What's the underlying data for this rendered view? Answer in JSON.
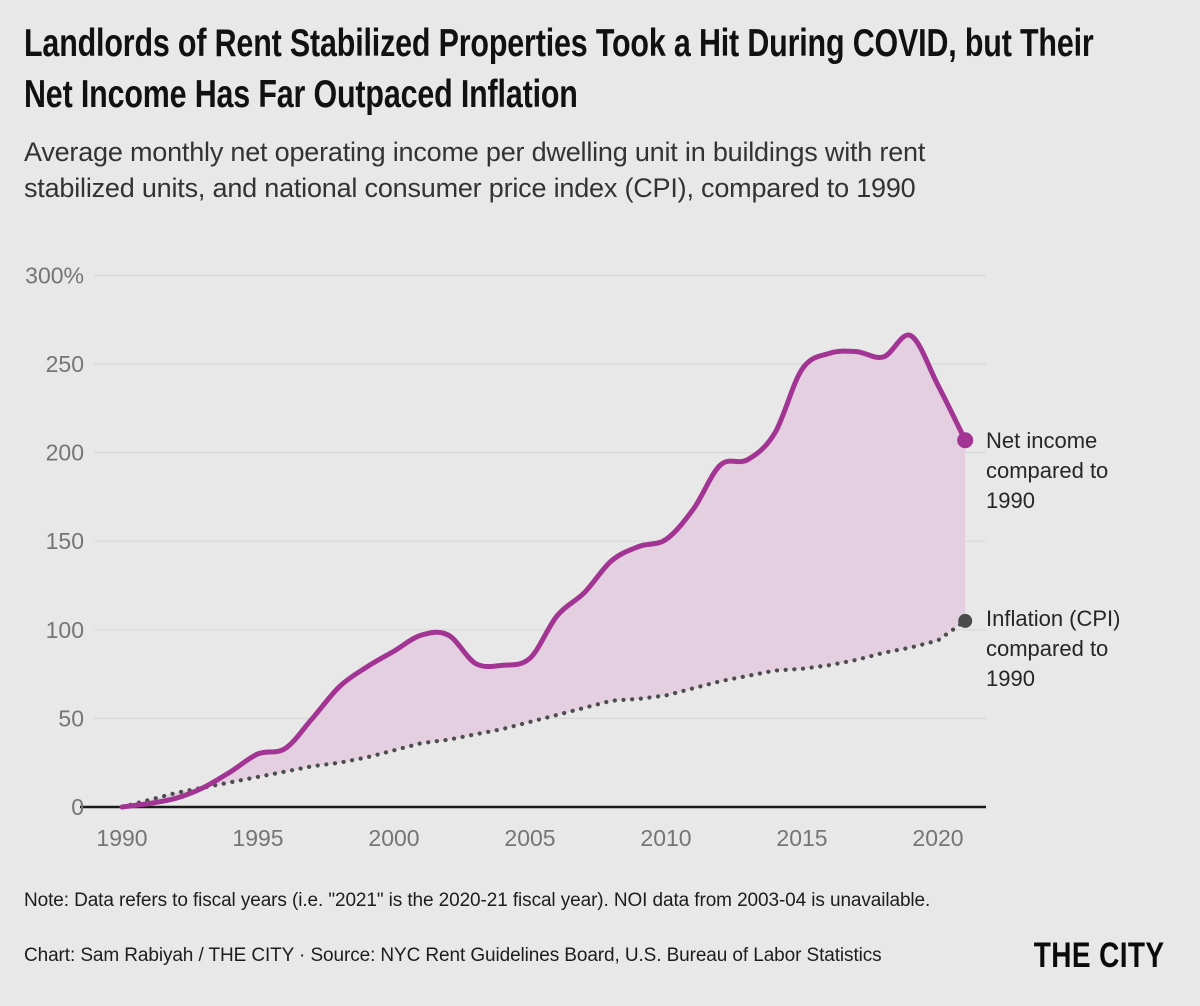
{
  "header": {
    "title": "Landlords of Rent Stabilized Properties Took a Hit During COVID, but Their\nNet Income Has Far Outpaced Inflation",
    "subtitle": "Average monthly net operating income per dwelling unit in buildings with rent\nstabilized units, and national consumer price index (CPI), compared to 1990"
  },
  "chart_data": {
    "type": "line",
    "title": "",
    "xlabel": "",
    "ylabel": "",
    "x": [
      1990,
      1991,
      1992,
      1993,
      1994,
      1995,
      1996,
      1997,
      1998,
      1999,
      2000,
      2001,
      2002,
      2003,
      2004,
      2005,
      2006,
      2007,
      2008,
      2009,
      2010,
      2011,
      2012,
      2013,
      2014,
      2015,
      2016,
      2017,
      2018,
      2019,
      2020,
      2021
    ],
    "series": [
      {
        "name": "Net income compared to 1990",
        "style": "solid",
        "color": "#a23493",
        "values": [
          0,
          2,
          5,
          11,
          20,
          30,
          33,
          50,
          68,
          79,
          88,
          97,
          97,
          81,
          80,
          84,
          108,
          121,
          139,
          147,
          151,
          168,
          193,
          196,
          211,
          247,
          256,
          257,
          254,
          266,
          238,
          207
        ]
      },
      {
        "name": "Inflation (CPI) compared to 1990",
        "style": "dotted",
        "color": "#4d4d4d",
        "values": [
          0,
          4,
          8,
          11,
          14,
          17,
          20,
          23,
          25,
          28,
          32,
          36,
          38,
          41,
          44,
          48,
          52,
          56,
          60,
          61,
          63,
          67,
          71,
          74,
          77,
          78,
          80,
          83,
          87,
          90,
          94,
          105
        ]
      }
    ],
    "fill_between": {
      "upper": "Net income compared to 1990",
      "lower": "Inflation (CPI) compared to 1990",
      "color": "#e3cfe0"
    },
    "ylim": [
      0,
      300
    ],
    "yticks": [
      0,
      50,
      100,
      150,
      200,
      250,
      300
    ],
    "ytick_labels": [
      "0",
      "50",
      "100",
      "150",
      "200",
      "250",
      "300%"
    ],
    "xticks": [
      1990,
      1995,
      2000,
      2005,
      2010,
      2015,
      2020
    ],
    "grid": "horizontal",
    "legend_position": "right-of-line-ends",
    "end_dot_colors": {
      "net_income": "#a23493",
      "cpi": "#4a4a4a"
    },
    "annotations": [
      {
        "id": "net_income_label",
        "text": "Net income\ncompared to\n1990"
      },
      {
        "id": "cpi_label",
        "text": "Inflation (CPI)\ncompared to\n1990"
      }
    ]
  },
  "footer": {
    "note": "Note: Data refers to fiscal years (i.e. \"2021\" is the 2020-21 fiscal year). NOI data from 2003-04 is unavailable.",
    "credit": "Chart: Sam Rabiyah / THE CITY · Source: NYC Rent Guidelines Board, U.S. Bureau of Labor Statistics",
    "logo": "THE CITY"
  }
}
